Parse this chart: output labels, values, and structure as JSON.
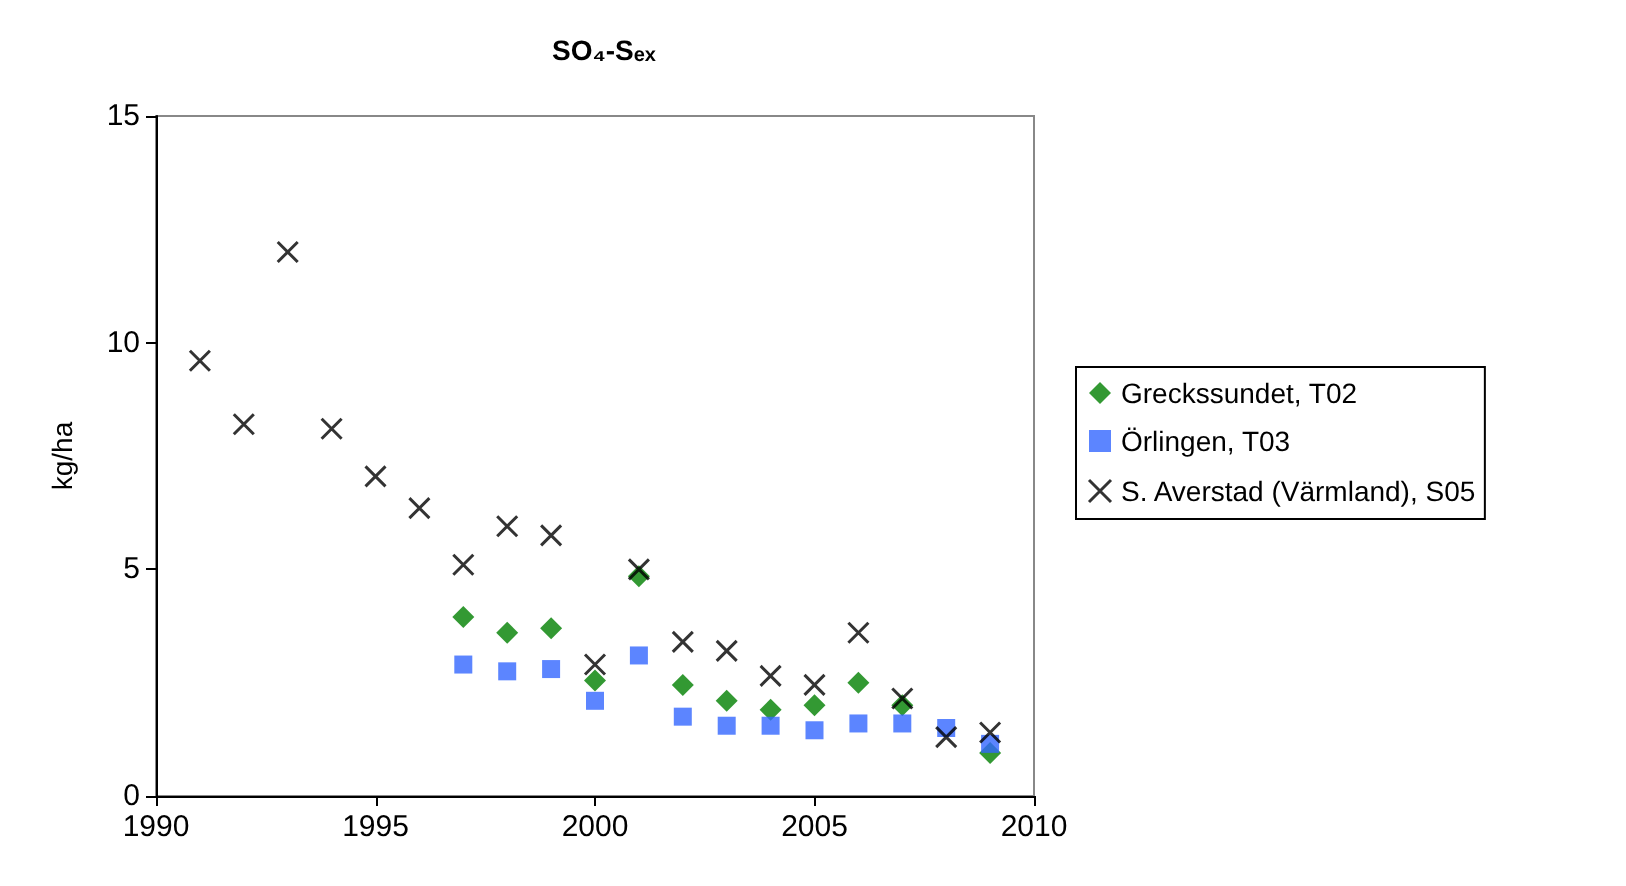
{
  "chart_data": {
    "type": "scatter",
    "title": "SO₄-S$_{ex}$",
    "ylabel": "kg/ha",
    "xlim": [
      1990,
      2010
    ],
    "xticks": [
      1990,
      1995,
      2000,
      2005,
      2010
    ],
    "ylim": [
      0,
      15
    ],
    "yticks": [
      0,
      5,
      10,
      15
    ],
    "grid": false,
    "legend": "right",
    "series": [
      {
        "name": "Greckssundet, T02",
        "color": "#008000",
        "marker": "diamond",
        "x": [
          1997,
          1998,
          1999,
          2000,
          2001,
          2002,
          2003,
          2004,
          2005,
          2006,
          2007,
          2008,
          2009
        ],
        "values": [
          3.95,
          3.6,
          3.7,
          2.55,
          4.85,
          2.45,
          2.1,
          1.9,
          2.0,
          2.5,
          2.0,
          null,
          0.95
        ]
      },
      {
        "name": "Örlingen, T03",
        "color": "#3366ff",
        "marker": "square",
        "x": [
          1997,
          1998,
          1999,
          2000,
          2001,
          2002,
          2003,
          2004,
          2005,
          2006,
          2007,
          2008,
          2009
        ],
        "values": [
          2.9,
          2.75,
          2.8,
          2.1,
          3.1,
          1.75,
          1.55,
          1.55,
          1.45,
          1.6,
          1.6,
          1.5,
          1.15
        ]
      },
      {
        "name": "S. Averstad (Värmland), S05",
        "color": "#000000",
        "marker": "cross",
        "x": [
          1991,
          1992,
          1993,
          1994,
          1995,
          1996,
          1997,
          1998,
          1999,
          2000,
          2001,
          2002,
          2003,
          2004,
          2005,
          2006,
          2007,
          2008,
          2009
        ],
        "values": [
          9.6,
          8.2,
          12.0,
          8.1,
          7.05,
          6.35,
          5.1,
          5.95,
          5.75,
          2.9,
          5.0,
          3.4,
          3.2,
          2.65,
          2.45,
          3.6,
          2.15,
          1.3,
          1.4
        ]
      }
    ]
  }
}
